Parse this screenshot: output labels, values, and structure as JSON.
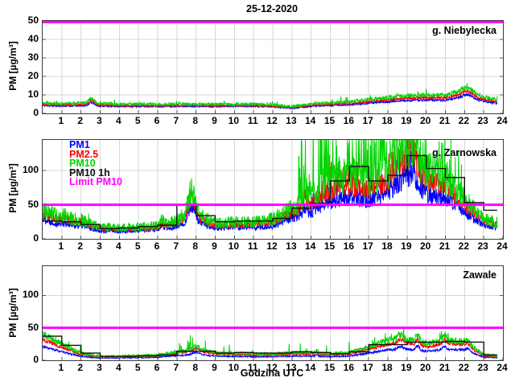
{
  "title": "25-12-2020",
  "xlabel": "Godzina UTC",
  "ylabel": "PM [µg/m³]",
  "colors": {
    "pm1": "#0000ff",
    "pm25": "#ff0000",
    "pm10": "#00d400",
    "pm10_1h": "#111111",
    "limit": "#ff00ff",
    "grid": "#d6d6d6",
    "axis_box": "#3c3c3c",
    "tick": "#555555"
  },
  "legend": [
    {
      "label": "PM1",
      "color": "#0000ff"
    },
    {
      "label": "PM2.5",
      "color": "#ff0000"
    },
    {
      "label": "PM10",
      "color": "#00d400"
    },
    {
      "label": "PM10 1h",
      "color": "#111111"
    },
    {
      "label": "Limit PM10",
      "color": "#ff00ff"
    }
  ],
  "hour_ticks": [
    "1",
    "2",
    "3",
    "4",
    "5",
    "6",
    "7",
    "8",
    "9",
    "10",
    "11",
    "12",
    "13",
    "14",
    "15",
    "16",
    "17",
    "18",
    "19",
    "20",
    "21",
    "22",
    "23",
    "24"
  ],
  "chart_data": [
    {
      "type": "line",
      "station": "g. Niebylecka",
      "xlim": [
        0,
        24
      ],
      "data_end_hour": 23.7,
      "ylim": [
        0,
        50
      ],
      "yticks": [
        0,
        10,
        20,
        30,
        40,
        50
      ],
      "limit_pm10": 50,
      "grid": true,
      "seed": 11,
      "bumps": [
        {
          "x": 2.55,
          "w": 0.2,
          "amp": 2.2
        },
        {
          "x": 22.2,
          "w": 0.3,
          "amp": 1.5
        }
      ],
      "series": [
        {
          "name": "PM1",
          "color": "#0000ff",
          "noise": [
            0.25,
            0.05
          ],
          "spikes": [],
          "hourly": [
            4.2,
            4.0,
            4.2,
            4.0,
            3.8,
            3.8,
            3.8,
            3.9,
            3.8,
            3.8,
            3.9,
            3.8,
            3.6,
            2.8,
            3.9,
            4.3,
            4.6,
            5.6,
            6.3,
            7.0,
            7.2,
            7.1,
            9.3,
            6.6,
            4.8
          ]
        },
        {
          "name": "PM2.5",
          "color": "#ff0000",
          "noise": [
            0.3,
            0.05
          ],
          "spikes": [],
          "hourly": [
            4.8,
            4.5,
            4.8,
            4.5,
            4.2,
            4.2,
            4.2,
            4.3,
            4.2,
            4.2,
            4.3,
            4.2,
            4.0,
            3.2,
            4.4,
            4.9,
            5.3,
            6.4,
            7.3,
            8.2,
            8.5,
            8.4,
            11.0,
            7.7,
            5.6
          ]
        },
        {
          "name": "PM10",
          "color": "#00d400",
          "noise": [
            0.45,
            0.08
          ],
          "spikes": [
            {
              "from": 0,
              "to": 23.7,
              "p": 0.03,
              "amp": 2.5
            }
          ],
          "hourly": [
            5.6,
            5.2,
            5.6,
            5.3,
            4.9,
            4.9,
            4.9,
            5.0,
            4.9,
            4.9,
            5.0,
            4.9,
            4.6,
            3.7,
            5.1,
            5.7,
            6.2,
            7.5,
            8.5,
            9.6,
            10.0,
            9.8,
            12.8,
            9.0,
            6.5
          ]
        }
      ]
    },
    {
      "type": "line",
      "station": "g. Zarnowska",
      "xlim": [
        0,
        24
      ],
      "data_end_hour": 23.7,
      "ylim": [
        0,
        145
      ],
      "yticks": [
        0,
        50,
        100
      ],
      "limit_pm10": 50,
      "grid": true,
      "seed": 22,
      "bumps": [
        {
          "x": 7.75,
          "w": 0.25,
          "amp": 28
        },
        {
          "x": 13.7,
          "w": 0.12,
          "amp": 14
        },
        {
          "x": 19.35,
          "w": 0.18,
          "amp": 16
        },
        {
          "x": 6.2,
          "w": 0.1,
          "amp": 6
        },
        {
          "x": 1.15,
          "w": 0.25,
          "amp": 4
        }
      ],
      "series": [
        {
          "name": "PM1",
          "color": "#0000ff",
          "noise": [
            1.2,
            0.18
          ],
          "spikes": [
            {
              "from": 13.3,
              "to": 19.8,
              "p": 0.12,
              "amp": 25
            }
          ],
          "hourly": [
            30,
            20,
            19,
            12,
            11,
            12,
            14,
            18,
            26,
            15,
            17,
            16,
            19,
            30,
            38,
            55,
            60,
            55,
            65,
            95,
            65,
            60,
            38,
            20,
            14
          ]
        },
        {
          "name": "PM2.5",
          "color": "#ff0000",
          "noise": [
            1.4,
            0.18
          ],
          "spikes": [
            {
              "from": 13.3,
              "to": 19.8,
              "p": 0.15,
              "amp": 35
            },
            {
              "from": 19.8,
              "to": 21.9,
              "p": 0.08,
              "amp": 20
            }
          ],
          "hourly": [
            38,
            26,
            24,
            15,
            14,
            15,
            17,
            23,
            33,
            19,
            21,
            21,
            25,
            38,
            50,
            72,
            78,
            72,
            85,
            125,
            88,
            78,
            50,
            26,
            18
          ]
        },
        {
          "name": "PM10",
          "color": "#00d400",
          "noise": [
            2.0,
            0.28
          ],
          "spikes": [
            {
              "from": 13.3,
              "to": 19.8,
              "p": 0.3,
              "amp": 115
            },
            {
              "from": 19.8,
              "to": 21.9,
              "p": 0.12,
              "amp": 70
            },
            {
              "from": 7.0,
              "to": 9.0,
              "p": 0.05,
              "amp": 12
            },
            {
              "from": 0,
              "to": 13.3,
              "p": 0.02,
              "amp": 10
            }
          ],
          "hourly": [
            43,
            30,
            28,
            17,
            16,
            17,
            20,
            27,
            38,
            22,
            25,
            25,
            29,
            45,
            60,
            85,
            92,
            85,
            100,
            140,
            100,
            90,
            58,
            30,
            21
          ]
        },
        {
          "name": "PM10 1h",
          "color": "#111111",
          "type": "step",
          "hourly_mean": [
            26,
            25,
            21,
            15,
            16,
            18,
            20,
            50,
            34,
            25,
            26,
            26,
            30,
            45,
            52,
            85,
            106,
            85,
            93,
            122,
            103,
            90,
            53,
            42
          ]
        }
      ]
    },
    {
      "type": "line",
      "station": "Zawale",
      "xlim": [
        0,
        24
      ],
      "data_end_hour": 23.7,
      "ylim": [
        0,
        145
      ],
      "yticks": [
        0,
        50,
        100
      ],
      "limit_pm10": 50,
      "grid": true,
      "seed": 33,
      "bumps": [
        {
          "x": 8.0,
          "w": 0.25,
          "amp": 4
        },
        {
          "x": 14.3,
          "w": 0.08,
          "amp": 3
        },
        {
          "x": 18.65,
          "w": 0.2,
          "amp": 6
        },
        {
          "x": 19.55,
          "w": 0.12,
          "amp": 9
        },
        {
          "x": 20.95,
          "w": 0.12,
          "amp": 6
        },
        {
          "x": 22.2,
          "w": 0.15,
          "amp": 5
        }
      ],
      "series": [
        {
          "name": "PM1",
          "color": "#0000ff",
          "noise": [
            0.5,
            0.08
          ],
          "spikes": [],
          "hourly": [
            21,
            13,
            6,
            3.5,
            3.5,
            4,
            4.5,
            7,
            9,
            6.5,
            6,
            5.5,
            5.5,
            6.5,
            6.5,
            5.5,
            6.5,
            11,
            16,
            17,
            14,
            17,
            16,
            5,
            3.5
          ]
        },
        {
          "name": "PM2.5",
          "color": "#ff0000",
          "noise": [
            0.7,
            0.09
          ],
          "spikes": [],
          "hourly": [
            32,
            20,
            9,
            5,
            5,
            6,
            7,
            11,
            14,
            10,
            9,
            8,
            8,
            10,
            10,
            8,
            10,
            17,
            25,
            27,
            21,
            26,
            24,
            7,
            5
          ]
        },
        {
          "name": "PM10",
          "color": "#00d400",
          "noise": [
            1.0,
            0.14
          ],
          "spikes": [
            {
              "from": 6.5,
              "to": 16.8,
              "p": 0.03,
              "amp": 24
            },
            {
              "from": 16.9,
              "to": 22.8,
              "p": 0.06,
              "amp": 12
            },
            {
              "from": 0,
              "to": 2,
              "p": 0.04,
              "amp": 8
            }
          ],
          "hourly": [
            40,
            25,
            11,
            6,
            6,
            7,
            8,
            13,
            17,
            12,
            11,
            10,
            10,
            12,
            12,
            10,
            12,
            21,
            31,
            33,
            26,
            32,
            29,
            9,
            6
          ]
        },
        {
          "name": "PM10 1h",
          "color": "#111111",
          "type": "step",
          "hourly_mean": [
            37,
            23,
            11,
            6,
            6,
            7,
            8,
            14,
            14,
            11,
            12,
            11,
            11,
            13,
            12,
            10,
            13,
            24,
            24,
            28,
            28,
            29,
            28,
            8
          ]
        }
      ]
    }
  ],
  "layout_note": "3 stacked subplots sharing hour axis 0-24, magenta PM10 limit line at 50 ug/m3 in each"
}
